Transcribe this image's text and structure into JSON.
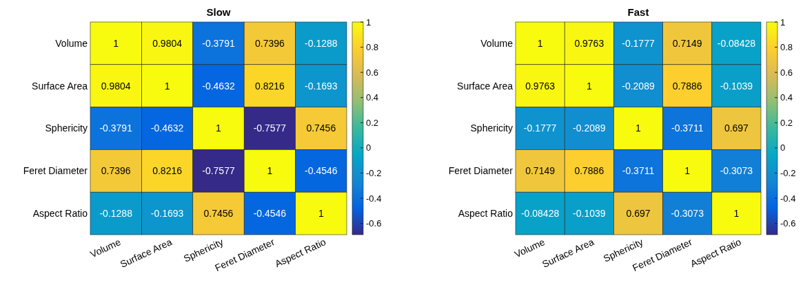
{
  "chart_data": [
    {
      "type": "heatmap",
      "title": "Slow",
      "categories": [
        "Volume",
        "Surface Area",
        "Sphericity",
        "Feret Diameter",
        "Aspect Ratio"
      ],
      "y_categories": [
        "Volume",
        "Surface Area",
        "Sphericity",
        "Feret Diameter",
        "Aspect Ratio"
      ],
      "cells": [
        [
          1,
          0.9804,
          -0.3791,
          0.7396,
          -0.1288
        ],
        [
          0.9804,
          1,
          -0.4632,
          0.8216,
          -0.1693
        ],
        [
          -0.3791,
          -0.4632,
          1,
          -0.7577,
          0.7456
        ],
        [
          0.7396,
          0.8216,
          -0.7577,
          1,
          -0.4546
        ],
        [
          -0.1288,
          -0.1693,
          0.7456,
          -0.4546,
          1
        ]
      ],
      "clim": [
        -0.69,
        1
      ],
      "cticks": [
        -0.6,
        -0.4,
        -0.2,
        0,
        0.2,
        0.4,
        0.6,
        0.8,
        1
      ],
      "data_labels": true
    },
    {
      "type": "heatmap",
      "title": "Fast",
      "categories": [
        "Volume",
        "Surface Area",
        "Sphericity",
        "Feret Diameter",
        "Aspect Ratio"
      ],
      "y_categories": [
        "Volume",
        "Surface Area",
        "Sphericity",
        "Feret Diameter",
        "Aspect Ratio"
      ],
      "cells": [
        [
          1,
          0.9763,
          -0.1777,
          0.7149,
          -0.08428
        ],
        [
          0.9763,
          1,
          -0.2089,
          0.7886,
          -0.1039
        ],
        [
          -0.1777,
          -0.2089,
          1,
          -0.3711,
          0.697
        ],
        [
          0.7149,
          0.7886,
          -0.3711,
          1,
          -0.3073
        ],
        [
          -0.08428,
          -0.1039,
          0.697,
          -0.3073,
          1
        ]
      ],
      "clim": [
        -0.69,
        1
      ],
      "cticks": [
        -0.6,
        -0.4,
        -0.2,
        0,
        0.2,
        0.4,
        0.6,
        0.8,
        1
      ],
      "data_labels": true
    }
  ]
}
